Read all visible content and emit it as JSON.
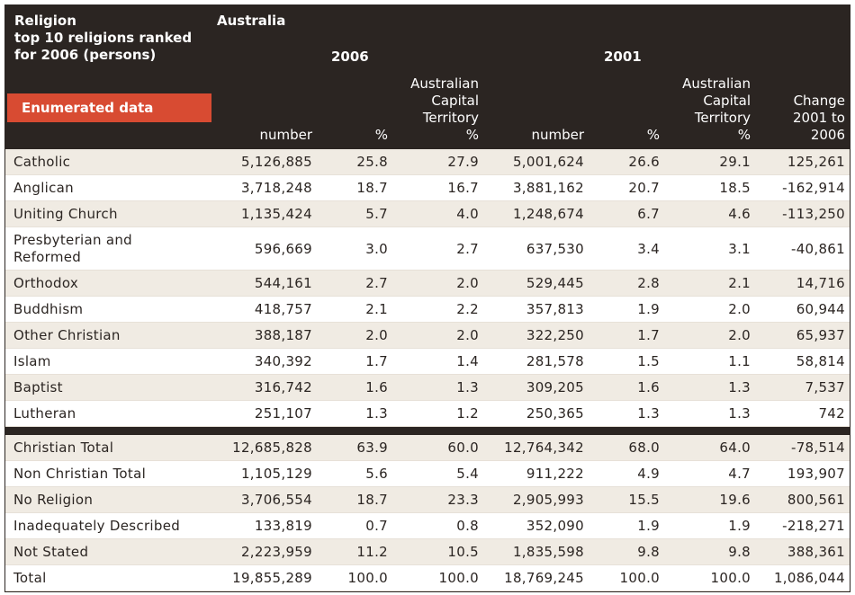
{
  "table": {
    "title_lines": [
      "Religion",
      "top 10 religions ranked",
      "for 2006 (persons)"
    ],
    "region": "Australia",
    "year_a": "2006",
    "year_b": "2001",
    "badge": "Enumerated data",
    "col_number_a": "number",
    "col_pct_a": "%",
    "col_act_a": [
      "Australian",
      "Capital",
      "Territory",
      "%"
    ],
    "col_number_b": "number",
    "col_pct_b": "%",
    "col_act_b": [
      "Australian",
      "Capital",
      "Territory",
      "%"
    ],
    "col_change": [
      "Change",
      "2001 to",
      "2006"
    ],
    "top10": [
      {
        "label": "Catholic",
        "n06": "5,126,885",
        "p06": "25.8",
        "a06": "27.9",
        "n01": "5,001,624",
        "p01": "26.6",
        "a01": "29.1",
        "chg": "125,261"
      },
      {
        "label": "Anglican",
        "n06": "3,718,248",
        "p06": "18.7",
        "a06": "16.7",
        "n01": "3,881,162",
        "p01": "20.7",
        "a01": "18.5",
        "chg": "-162,914"
      },
      {
        "label": "Uniting Church",
        "n06": "1,135,424",
        "p06": "5.7",
        "a06": "4.0",
        "n01": "1,248,674",
        "p01": "6.7",
        "a01": "4.6",
        "chg": "-113,250"
      },
      {
        "label": "Presbyterian and Reformed",
        "n06": "596,669",
        "p06": "3.0",
        "a06": "2.7",
        "n01": "637,530",
        "p01": "3.4",
        "a01": "3.1",
        "chg": "-40,861"
      },
      {
        "label": "Orthodox",
        "n06": "544,161",
        "p06": "2.7",
        "a06": "2.0",
        "n01": "529,445",
        "p01": "2.8",
        "a01": "2.1",
        "chg": "14,716"
      },
      {
        "label": "Buddhism",
        "n06": "418,757",
        "p06": "2.1",
        "a06": "2.2",
        "n01": "357,813",
        "p01": "1.9",
        "a01": "2.0",
        "chg": "60,944"
      },
      {
        "label": "Other Christian",
        "n06": "388,187",
        "p06": "2.0",
        "a06": "2.0",
        "n01": "322,250",
        "p01": "1.7",
        "a01": "2.0",
        "chg": "65,937"
      },
      {
        "label": "Islam",
        "n06": "340,392",
        "p06": "1.7",
        "a06": "1.4",
        "n01": "281,578",
        "p01": "1.5",
        "a01": "1.1",
        "chg": "58,814"
      },
      {
        "label": "Baptist",
        "n06": "316,742",
        "p06": "1.6",
        "a06": "1.3",
        "n01": "309,205",
        "p01": "1.6",
        "a01": "1.3",
        "chg": "7,537"
      },
      {
        "label": "Lutheran",
        "n06": "251,107",
        "p06": "1.3",
        "a06": "1.2",
        "n01": "250,365",
        "p01": "1.3",
        "a01": "1.3",
        "chg": "742"
      }
    ],
    "totals": [
      {
        "label": "Christian Total",
        "n06": "12,685,828",
        "p06": "63.9",
        "a06": "60.0",
        "n01": "12,764,342",
        "p01": "68.0",
        "a01": "64.0",
        "chg": "-78,514"
      },
      {
        "label": "Non Christian Total",
        "n06": "1,105,129",
        "p06": "5.6",
        "a06": "5.4",
        "n01": "911,222",
        "p01": "4.9",
        "a01": "4.7",
        "chg": "193,907"
      },
      {
        "label": "No Religion",
        "n06": "3,706,554",
        "p06": "18.7",
        "a06": "23.3",
        "n01": "2,905,993",
        "p01": "15.5",
        "a01": "19.6",
        "chg": "800,561"
      },
      {
        "label": "Inadequately Described",
        "n06": "133,819",
        "p06": "0.7",
        "a06": "0.8",
        "n01": "352,090",
        "p01": "1.9",
        "a01": "1.9",
        "chg": "-218,271"
      },
      {
        "label": "Not Stated",
        "n06": "2,223,959",
        "p06": "11.2",
        "a06": "10.5",
        "n01": "1,835,598",
        "p01": "9.8",
        "a01": "9.8",
        "chg": "388,361"
      },
      {
        "label": "Total",
        "n06": "19,855,289",
        "p06": "100.0",
        "a06": "100.0",
        "n01": "18,769,245",
        "p01": "100.0",
        "a01": "100.0",
        "chg": "1,086,044"
      }
    ]
  },
  "colors": {
    "header_bg": "#2b2522",
    "badge_bg": "#d84b32",
    "row_alt": "#f0ebe3",
    "text": "#2b2522"
  }
}
